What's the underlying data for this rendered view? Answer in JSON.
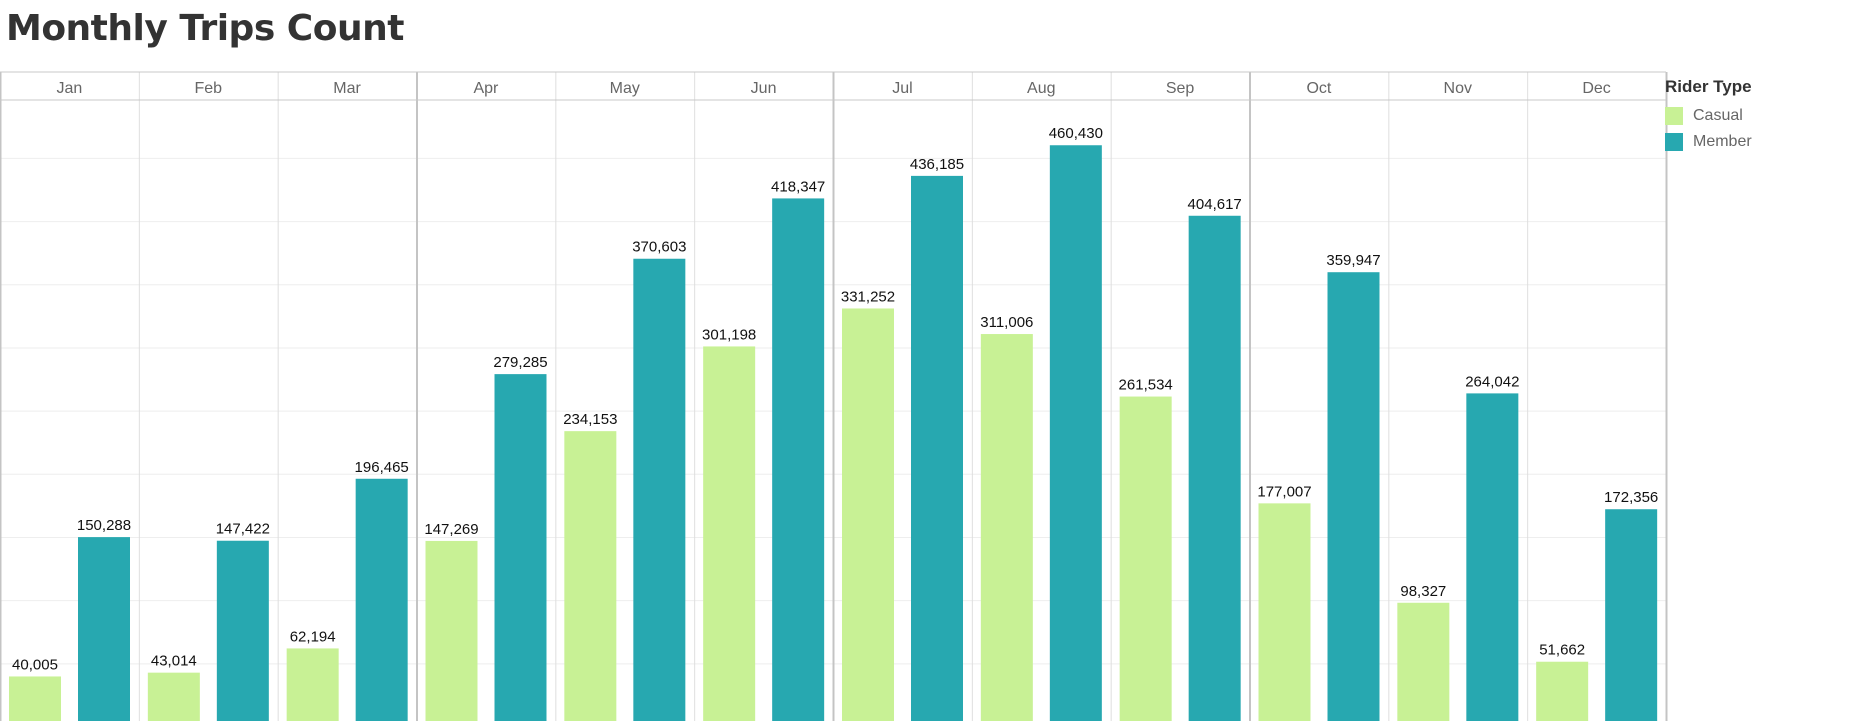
{
  "title": "Monthly Trips Count",
  "legend": {
    "title": "Rider Type"
  },
  "chart_data": {
    "type": "bar",
    "title": "Monthly Trips Count",
    "categories": [
      "Jan",
      "Feb",
      "Mar",
      "Apr",
      "May",
      "Jun",
      "Jul",
      "Aug",
      "Sep",
      "Oct",
      "Nov",
      "Dec"
    ],
    "series": [
      {
        "name": "Casual",
        "color": "#c8f195",
        "values": [
          40005,
          43014,
          62194,
          147269,
          234153,
          301198,
          331252,
          311006,
          261534,
          177007,
          98327,
          51662
        ],
        "labels": [
          "40,005",
          "43,014",
          "62,194",
          "147,269",
          "234,153",
          "301,198",
          "331,252",
          "311,006",
          "261,534",
          "177,007",
          "98,327",
          "51,662"
        ]
      },
      {
        "name": "Member",
        "color": "#27a8b0",
        "values": [
          150288,
          147422,
          196465,
          279285,
          370603,
          418347,
          436185,
          460430,
          404617,
          359947,
          264042,
          172356
        ],
        "labels": [
          "150,288",
          "147,422",
          "196,465",
          "279,285",
          "370,603",
          "418,347",
          "436,185",
          "460,430",
          "404,617",
          "359,947",
          "264,042",
          "172,356"
        ]
      }
    ],
    "ylim": [
      0,
      500000
    ],
    "grid": true,
    "legend_position": "right"
  }
}
